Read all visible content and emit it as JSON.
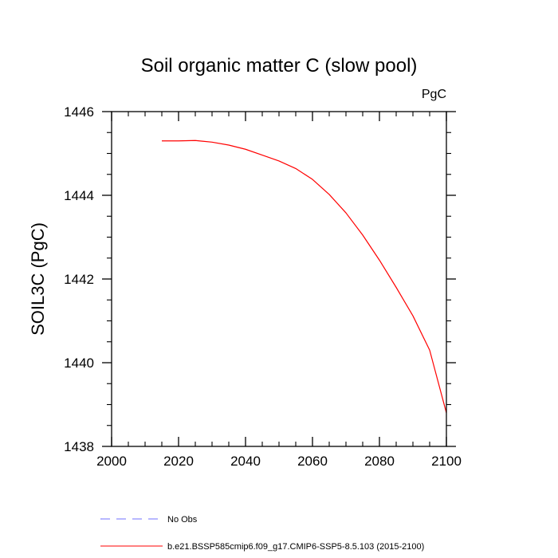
{
  "chart_data": {
    "type": "line",
    "title": "Soil organic matter C (slow pool)",
    "units_label": "PgC",
    "xlabel": "",
    "ylabel": "SOIL3C  (PgC)",
    "xlim": [
      2000,
      2100
    ],
    "ylim": [
      1438,
      1446
    ],
    "x_ticks": [
      2000,
      2020,
      2040,
      2060,
      2080,
      2100
    ],
    "y_ticks": [
      1438,
      1440,
      1442,
      1444,
      1446
    ],
    "series": [
      {
        "name": "b.e21.BSSP585cmip6.f09_g17.CMIP6-SSP5-8.5.103 (2015-2100)",
        "color": "#ff0000",
        "style": "solid",
        "x": [
          2015,
          2020,
          2025,
          2030,
          2035,
          2040,
          2045,
          2050,
          2055,
          2060,
          2065,
          2070,
          2075,
          2080,
          2085,
          2090,
          2095,
          2100
        ],
        "y": [
          1445.3,
          1445.3,
          1445.31,
          1445.27,
          1445.2,
          1445.1,
          1444.96,
          1444.82,
          1444.64,
          1444.38,
          1444.02,
          1443.58,
          1443.05,
          1442.45,
          1441.8,
          1441.12,
          1440.3,
          1438.8
        ]
      }
    ],
    "legend": [
      {
        "label": "No Obs",
        "color": "#7070ff",
        "style": "dashed"
      },
      {
        "label": "b.e21.BSSP585cmip6.f09_g17.CMIP6-SSP5-8.5.103 (2015-2100)",
        "color": "#ff0000",
        "style": "solid"
      }
    ]
  }
}
